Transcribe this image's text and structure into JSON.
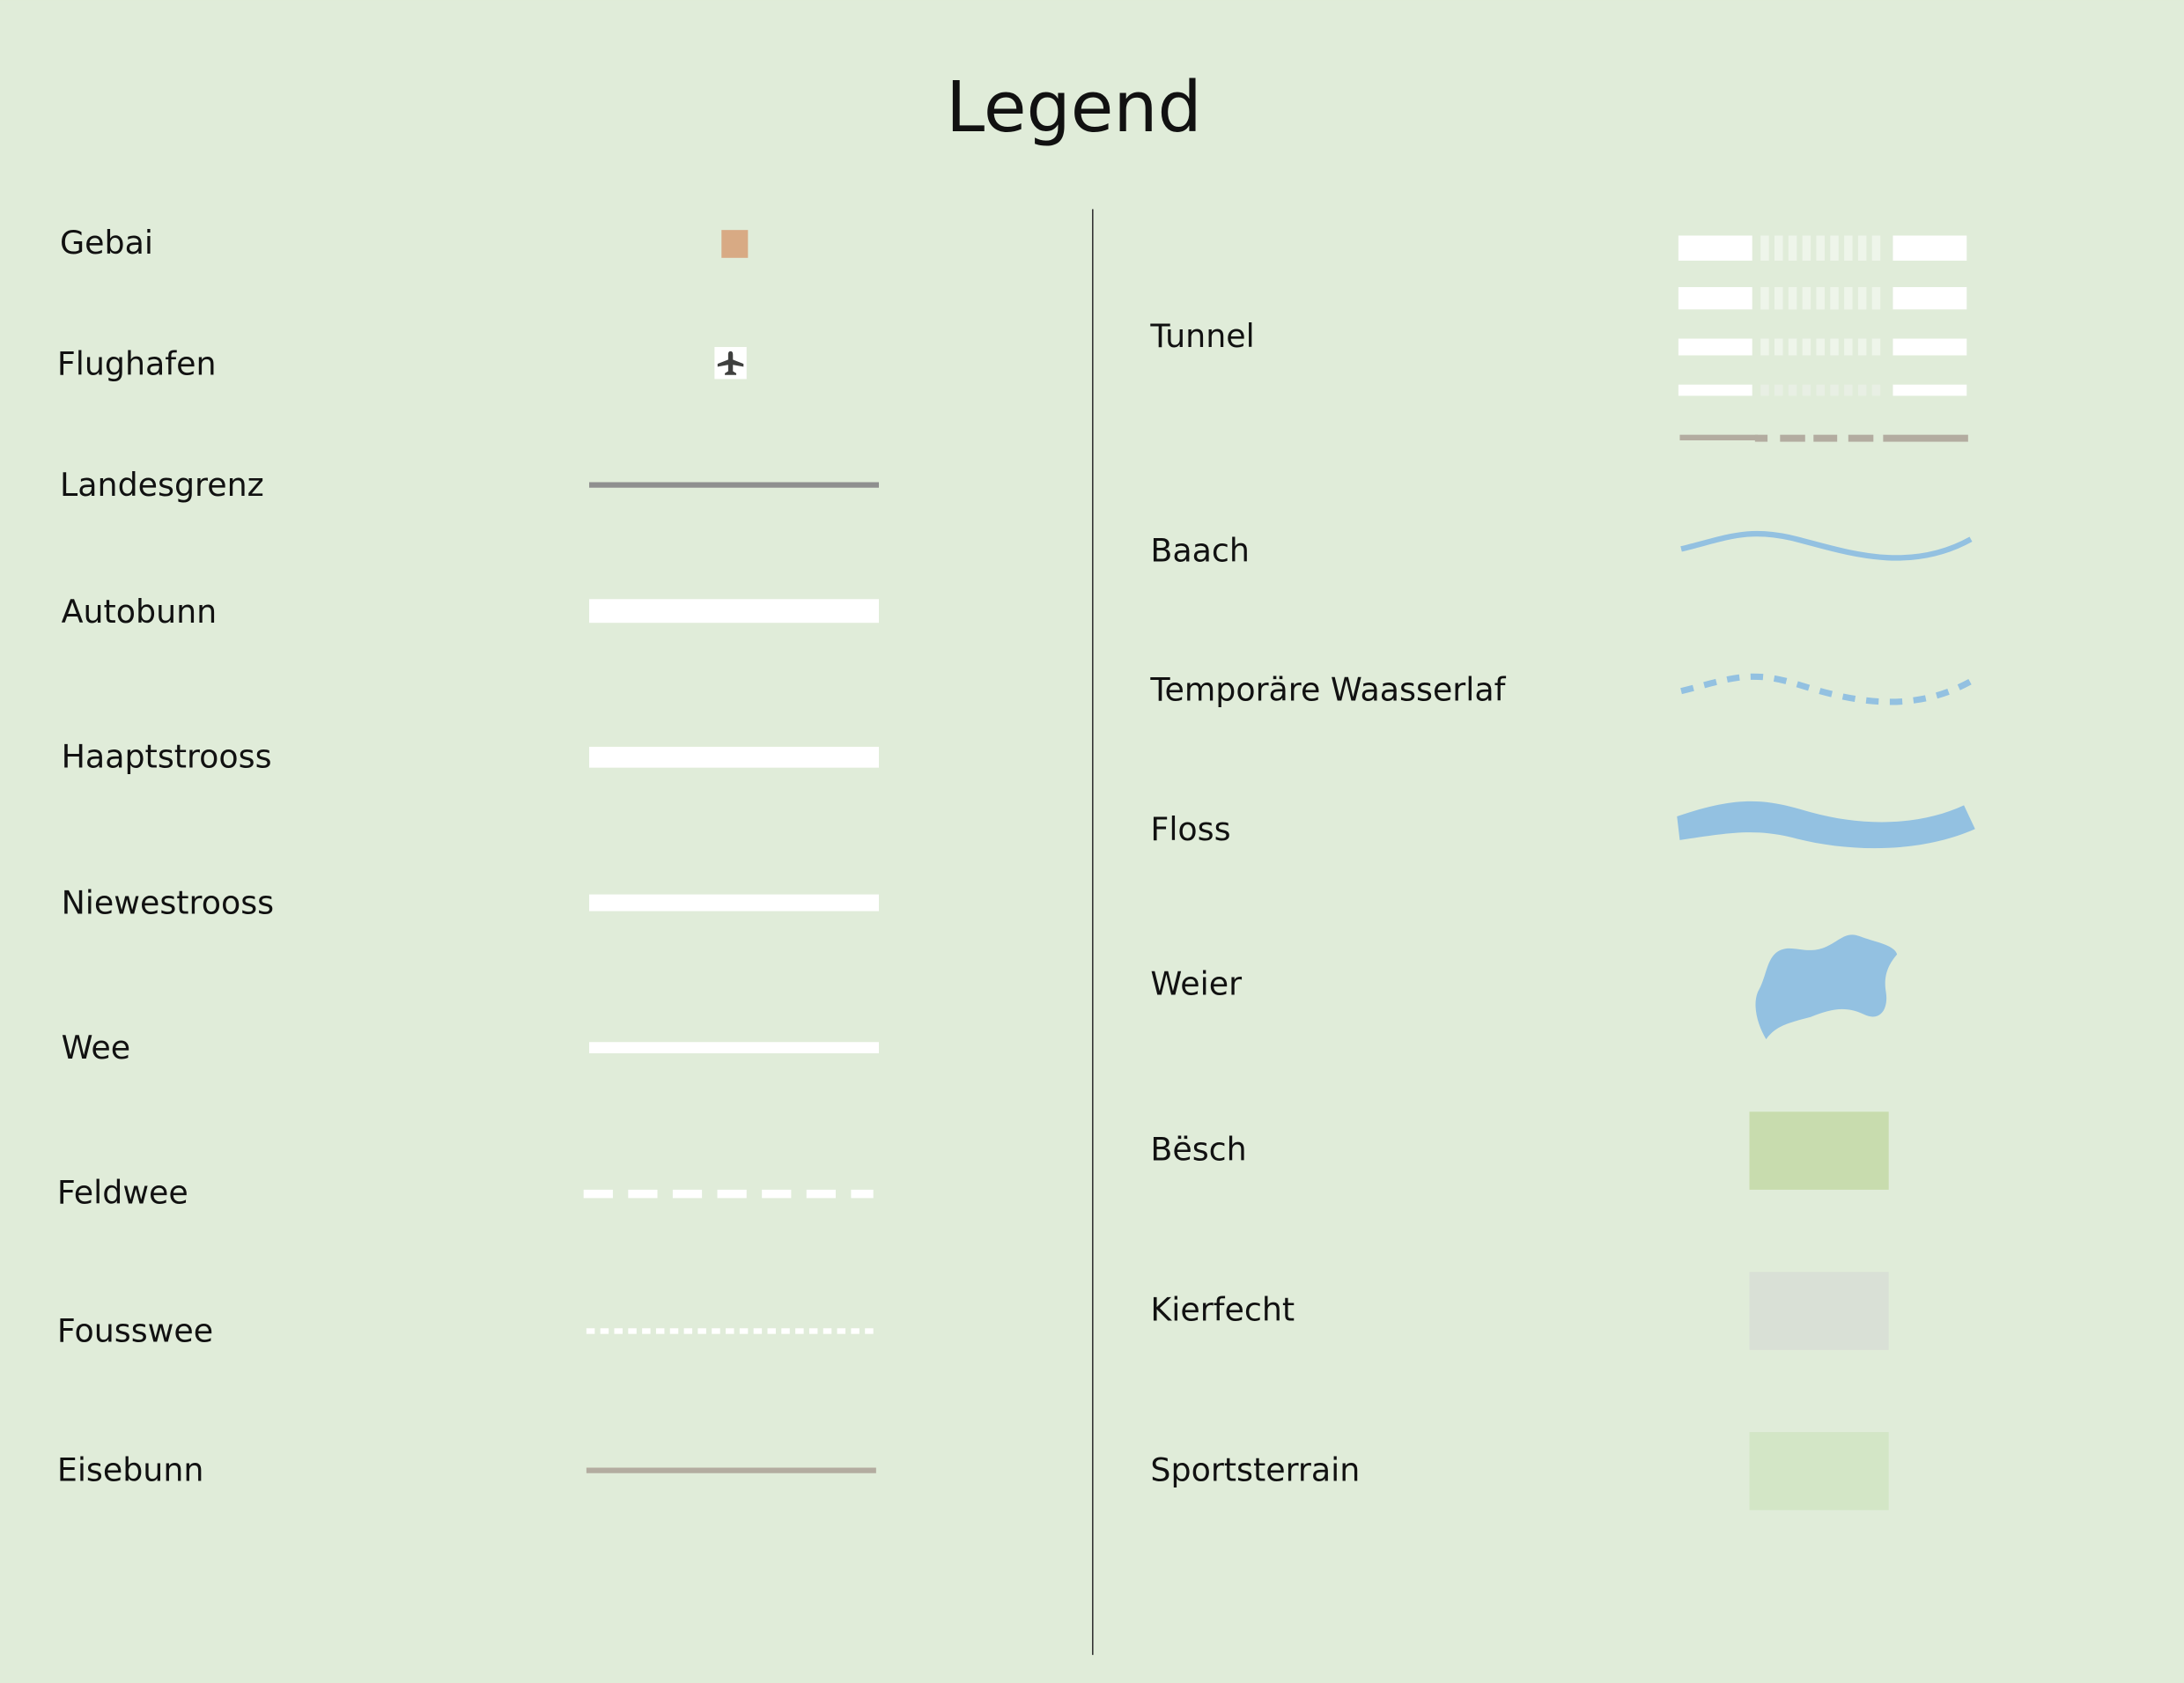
{
  "title": "Legend",
  "colors": {
    "background": "#e0ecd9",
    "building": "#d8aa84",
    "border": "#8f8f8f",
    "road": "#ffffff",
    "railway": "#b3aca0",
    "water": "#93c1e1",
    "forest": "#c8dcae",
    "cemetery": "#d9e0d6",
    "sports": "#d3e6c6"
  },
  "left_items": [
    {
      "label": "Gebai",
      "symbol": "building-square"
    },
    {
      "label": "Flughafen",
      "symbol": "airplane-icon"
    },
    {
      "label": "Landesgrenz",
      "symbol": "border-line"
    },
    {
      "label": "Autobunn",
      "symbol": "motorway-line"
    },
    {
      "label": "Haaptstrooss",
      "symbol": "main-road-line"
    },
    {
      "label": "Niewestrooss",
      "symbol": "secondary-road-line"
    },
    {
      "label": "Wee",
      "symbol": "path-line"
    },
    {
      "label": "Feldwee",
      "symbol": "dashed-line"
    },
    {
      "label": "Fousswee",
      "symbol": "dotted-line"
    },
    {
      "label": "Eisebunn",
      "symbol": "railway-line"
    }
  ],
  "right_items": [
    {
      "label": "Tunnel",
      "symbol": "tunnel-lines"
    },
    {
      "label": "Baach",
      "symbol": "stream-line"
    },
    {
      "label": "Temporäre Waasserlaf",
      "symbol": "intermittent-stream-line"
    },
    {
      "label": "Floss",
      "symbol": "river-band"
    },
    {
      "label": "Weier",
      "symbol": "pond-shape"
    },
    {
      "label": "Bësch",
      "symbol": "forest-area"
    },
    {
      "label": "Kierfecht",
      "symbol": "cemetery-area"
    },
    {
      "label": "Sportsterrain",
      "symbol": "sports-area"
    }
  ]
}
